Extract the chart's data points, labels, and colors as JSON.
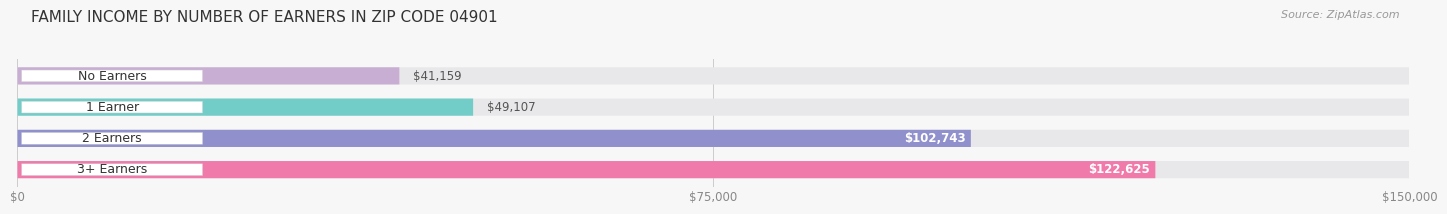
{
  "title": "FAMILY INCOME BY NUMBER OF EARNERS IN ZIP CODE 04901",
  "source": "Source: ZipAtlas.com",
  "categories": [
    "No Earners",
    "1 Earner",
    "2 Earners",
    "3+ Earners"
  ],
  "values": [
    41159,
    49107,
    102743,
    122625
  ],
  "labels": [
    "$41,159",
    "$49,107",
    "$102,743",
    "$122,625"
  ],
  "bar_colors": [
    "#c9aed4",
    "#72cdc9",
    "#9090cc",
    "#f07aaa"
  ],
  "bar_bg_color": "#e8e8ea",
  "max_value": 150000,
  "xticks": [
    0,
    75000,
    150000
  ],
  "xtick_labels": [
    "$0",
    "$75,000",
    "$150,000"
  ],
  "background_color": "#f7f7f7",
  "title_fontsize": 11,
  "source_fontsize": 8,
  "label_fontsize": 8.5,
  "category_fontsize": 9
}
